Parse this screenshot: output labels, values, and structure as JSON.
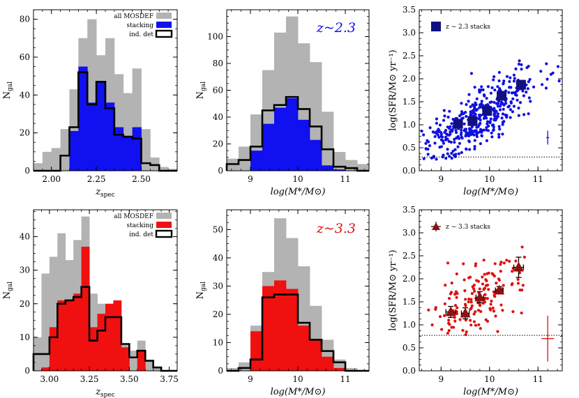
{
  "chart_data": [
    {
      "id": "p0",
      "type": "histogram",
      "xlabel": "z",
      "xlabel_sub": "spec",
      "ylabel": "N",
      "ylabel_sub": "gal",
      "xlim": [
        1.9,
        2.7
      ],
      "ylim": [
        0,
        85
      ],
      "xticks": [
        2.0,
        2.25,
        2.5
      ],
      "xtick_labels": [
        "2.00",
        "2.25",
        "2.50"
      ],
      "yticks": [
        0,
        20,
        40,
        60,
        80
      ],
      "ytick_labels": [
        "0",
        "20",
        "40",
        "60",
        "80"
      ],
      "bins": [
        1.9,
        1.95,
        2.0,
        2.05,
        2.1,
        2.15,
        2.2,
        2.25,
        2.3,
        2.35,
        2.4,
        2.45,
        2.5,
        2.55,
        2.6,
        2.65,
        2.7
      ],
      "series": [
        {
          "name": "all MOSDEF",
          "style": "gray-fill",
          "values": [
            4,
            10,
            12,
            22,
            43,
            70,
            80,
            61,
            70,
            51,
            41,
            54,
            22,
            7,
            2,
            1
          ]
        },
        {
          "name": "stacking",
          "style": "blue-fill",
          "values": [
            0,
            0,
            0,
            0,
            21,
            55,
            36,
            47,
            36,
            23,
            18,
            23,
            0,
            0,
            0,
            0
          ]
        },
        {
          "name": "ind. det",
          "style": "black-step",
          "values": [
            0,
            0,
            0,
            8,
            23,
            52,
            35,
            47,
            33,
            19,
            18,
            17,
            4,
            3,
            0,
            0
          ]
        }
      ],
      "legend": [
        "all MOSDEF",
        "stacking",
        "ind. det"
      ]
    },
    {
      "id": "p1",
      "type": "histogram",
      "xlabel": "log(M*/M⊙)",
      "ylabel": "N",
      "ylabel_sub": "gal",
      "annotation": "z~2.3",
      "annotation_color": "#1010e0",
      "xlim": [
        8.5,
        11.5
      ],
      "ylim": [
        0,
        120
      ],
      "xticks": [
        9,
        10,
        11
      ],
      "xtick_labels": [
        "9",
        "10",
        "11"
      ],
      "yticks": [
        0,
        20,
        40,
        60,
        80,
        100
      ],
      "ytick_labels": [
        "0",
        "20",
        "40",
        "60",
        "80",
        "100"
      ],
      "bins": [
        8.5,
        8.75,
        9.0,
        9.25,
        9.5,
        9.75,
        10.0,
        10.25,
        10.5,
        10.75,
        11.0,
        11.25,
        11.5
      ],
      "series": [
        {
          "name": "all MOSDEF",
          "values": [
            9,
            18,
            42,
            75,
            103,
            115,
            95,
            81,
            44,
            14,
            8,
            5
          ]
        },
        {
          "name": "stacking",
          "values": [
            0,
            0,
            15,
            35,
            47,
            54,
            38,
            23,
            4,
            1,
            0,
            0
          ]
        },
        {
          "name": "ind. det",
          "values": [
            5,
            8,
            18,
            45,
            49,
            55,
            46,
            33,
            16,
            3,
            2,
            0
          ]
        }
      ]
    },
    {
      "id": "p2",
      "type": "scatter",
      "xlabel": "log(M*/M⊙)",
      "ylabel": "log(SFR/M⊙ yr⁻¹)",
      "xlim": [
        8.55,
        11.5
      ],
      "ylim": [
        0,
        3.5
      ],
      "xticks": [
        9,
        10,
        11
      ],
      "xtick_labels": [
        "9",
        "10",
        "11"
      ],
      "yticks": [
        0,
        0.5,
        1.0,
        1.5,
        2.0,
        2.5,
        3.0,
        3.5
      ],
      "ytick_labels": [
        "0.0",
        "0.5",
        "1.0",
        "1.5",
        "2.0",
        "2.5",
        "3.0",
        "3.5"
      ],
      "point_color": "#1010e0",
      "n_points": 420,
      "seed": 7,
      "cloud": {
        "x_mean": 9.75,
        "x_sd": 0.55,
        "slope": 0.63,
        "intercept": -4.98,
        "scatter": 0.32,
        "y_min": 0.25
      },
      "threshold": 0.3,
      "stacks": {
        "label": "z ∼ 2.3 stacks",
        "marker": "square",
        "color": "#101080",
        "x": [
          9.35,
          9.65,
          9.95,
          10.25,
          10.65
        ],
        "y": [
          1.02,
          1.08,
          1.3,
          1.63,
          1.87
        ],
        "xerr": [
          0,
          0,
          0,
          0,
          0
        ],
        "yerr": [
          0,
          0,
          0,
          0,
          0
        ]
      },
      "typical_error": {
        "x": 11.2,
        "y": 0.72,
        "dx": 0.03,
        "dy": 0.15,
        "color": "#1010e0"
      },
      "legend": [
        "z ∼ 2.3 stacks"
      ]
    },
    {
      "id": "p3",
      "type": "histogram",
      "xlabel": "z",
      "xlabel_sub": "spec",
      "ylabel": "N",
      "ylabel_sub": "gal",
      "xlim": [
        2.9,
        3.8
      ],
      "ylim": [
        0,
        48
      ],
      "xticks": [
        3.0,
        3.25,
        3.5,
        3.75
      ],
      "xtick_labels": [
        "3.00",
        "3.25",
        "3.50",
        "3.75"
      ],
      "yticks": [
        0,
        10,
        20,
        30,
        40
      ],
      "ytick_labels": [
        "0",
        "10",
        "20",
        "30",
        "40"
      ],
      "bins": [
        2.9,
        2.95,
        3.0,
        3.05,
        3.1,
        3.15,
        3.2,
        3.25,
        3.3,
        3.35,
        3.4,
        3.45,
        3.5,
        3.55,
        3.6,
        3.65,
        3.7,
        3.75,
        3.8
      ],
      "series": [
        {
          "name": "all MOSDEF",
          "values": [
            10,
            29,
            34,
            41,
            33,
            39,
            46,
            23,
            20,
            18,
            17,
            8,
            6,
            9,
            3,
            1,
            0,
            0
          ]
        },
        {
          "name": "stacking",
          "values": [
            0,
            1,
            13,
            21,
            21,
            23,
            37,
            13,
            17,
            20,
            21,
            7,
            0,
            6,
            0,
            0,
            0,
            0
          ]
        },
        {
          "name": "ind. det",
          "values": [
            5,
            5,
            10,
            20,
            21,
            22,
            25,
            9,
            12,
            16,
            16,
            8,
            4,
            6,
            3,
            1,
            0,
            0
          ]
        }
      ],
      "legend": [
        "all MOSDEF",
        "stacking",
        "ind. det"
      ]
    },
    {
      "id": "p4",
      "type": "histogram",
      "xlabel": "log(M*/M⊙)",
      "ylabel": "N",
      "ylabel_sub": "gal",
      "annotation": "z~3.3",
      "annotation_color": "#e01010",
      "xlim": [
        8.5,
        11.5
      ],
      "ylim": [
        0,
        57
      ],
      "xticks": [
        9,
        10,
        11
      ],
      "xtick_labels": [
        "9",
        "10",
        "11"
      ],
      "yticks": [
        0,
        10,
        20,
        30,
        40,
        50
      ],
      "ytick_labels": [
        "0",
        "10",
        "20",
        "30",
        "40",
        "50"
      ],
      "bins": [
        8.5,
        8.75,
        9.0,
        9.25,
        9.5,
        9.75,
        10.0,
        10.25,
        10.5,
        10.75,
        11.0,
        11.25,
        11.5
      ],
      "series": [
        {
          "name": "all MOSDEF",
          "values": [
            1,
            3,
            16,
            35,
            54,
            47,
            37,
            23,
            11,
            4,
            1,
            0
          ]
        },
        {
          "name": "stacking",
          "values": [
            0,
            0,
            14,
            30,
            32,
            29,
            16,
            11,
            5,
            1,
            0,
            0
          ]
        },
        {
          "name": "ind. det",
          "values": [
            0,
            1,
            4,
            26,
            27,
            27,
            17,
            11,
            7,
            3,
            0,
            0
          ]
        }
      ]
    },
    {
      "id": "p5",
      "type": "scatter",
      "xlabel": "log(M*/M⊙)",
      "ylabel": "log(SFR/M⊙ yr⁻¹)",
      "xlim": [
        8.55,
        11.5
      ],
      "ylim": [
        0,
        3.5
      ],
      "xticks": [
        9,
        10,
        11
      ],
      "xtick_labels": [
        "9",
        "10",
        "11"
      ],
      "yticks": [
        0,
        0.5,
        1.0,
        1.5,
        2.0,
        2.5,
        3.0,
        3.5
      ],
      "ytick_labels": [
        "0.0",
        "0.5",
        "1.0",
        "1.5",
        "2.0",
        "2.5",
        "3.0",
        "3.5"
      ],
      "point_color": "#e01010",
      "n_points": 150,
      "seed": 23,
      "cloud": {
        "x_mean": 9.7,
        "x_sd": 0.45,
        "slope": 0.55,
        "intercept": -3.8,
        "scatter": 0.38,
        "y_min": 0.78
      },
      "threshold": 0.77,
      "stacks": {
        "label": "z ∼ 3.3 stacks",
        "marker": "triangle",
        "color": "#901010",
        "x": [
          9.2,
          9.5,
          9.8,
          10.2,
          10.6
        ],
        "y": [
          1.28,
          1.25,
          1.6,
          1.75,
          2.25
        ],
        "xerr": [
          0.1,
          0.08,
          0.08,
          0.08,
          0.1
        ],
        "yerr": [
          0.12,
          0.12,
          0.12,
          0.08,
          0.22
        ]
      },
      "typical_error": {
        "x": 11.2,
        "y": 0.7,
        "dx": 0.13,
        "dy": 0.5,
        "color": "#e01010"
      },
      "legend": [
        "z ∼ 3.3 stacks"
      ]
    }
  ]
}
